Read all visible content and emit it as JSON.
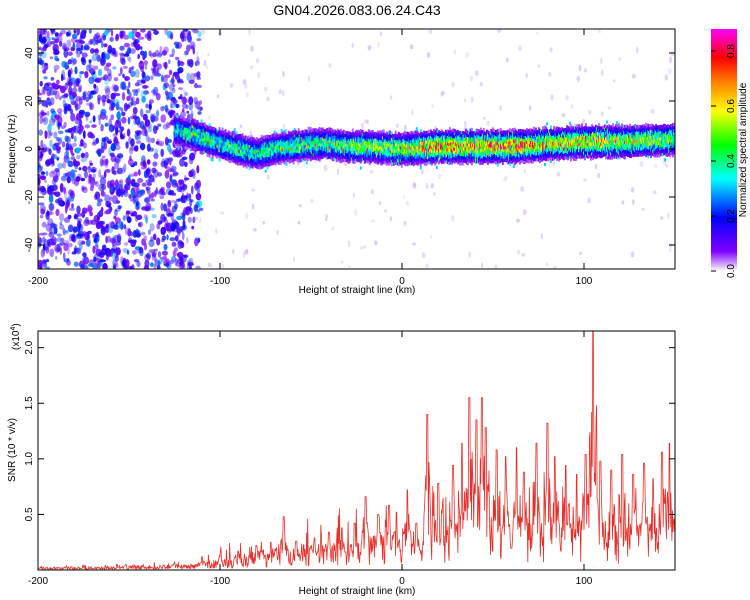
{
  "page_title": "GN04.2026.083.06.24.C43",
  "chart_data": [
    {
      "type": "heatmap",
      "xlabel": "Height of straight line (km)",
      "ylabel": "Frequency (Hz)",
      "xlim": [
        -200,
        150
      ],
      "ylim": [
        -50,
        50
      ],
      "xticks": [
        -200,
        -100,
        0,
        100
      ],
      "xtick_labels": [
        "-200",
        "-100",
        "0",
        "100"
      ],
      "yticks": [
        -40,
        -20,
        0,
        20,
        40
      ],
      "ytick_labels": [
        "-40",
        "-20",
        "0",
        "20",
        "40"
      ],
      "grid": false,
      "colorbar": {
        "label": "Normalized spectral amplitude",
        "range": [
          0.0,
          0.88
        ],
        "ticks": [
          0.0,
          0.2,
          0.4,
          0.6,
          0.8
        ],
        "tick_labels": [
          "0.0",
          "0.2",
          "0.4",
          "0.6",
          "0.8"
        ],
        "colors": [
          "#ffffff",
          "#8000ff",
          "#0000ff",
          "#00ffff",
          "#00ff00",
          "#ffff00",
          "#ff8000",
          "#ff0000",
          "#ff00ff"
        ]
      },
      "band": {
        "x": [
          -125,
          -115,
          -100,
          -90,
          -80,
          -70,
          -60,
          -50,
          -40,
          -30,
          -20,
          0,
          20,
          40,
          60,
          80,
          100,
          120,
          150
        ],
        "center_hz": [
          8,
          6,
          2,
          0,
          -2,
          0,
          1,
          2,
          2,
          1,
          1,
          0,
          1,
          1,
          1,
          2,
          3,
          3,
          4
        ],
        "peak_amplitude": [
          0.35,
          0.45,
          0.4,
          0.45,
          0.4,
          0.45,
          0.45,
          0.45,
          0.45,
          0.5,
          0.5,
          0.55,
          0.75,
          0.7,
          0.75,
          0.6,
          0.65,
          0.6,
          0.5
        ]
      },
      "noise_region": {
        "x": [
          -200,
          -120
        ],
        "amplitude": [
          0.1,
          0.25
        ]
      }
    },
    {
      "type": "line",
      "xlabel": "Height of straight line (km)",
      "ylabel": "SNR (10 * v/v)",
      "y_multiplier_label": "(x10",
      "y_multiplier_exponent": "4",
      "y_multiplier_close": ")",
      "xlim": [
        -200,
        150
      ],
      "ylim": [
        0,
        2.15
      ],
      "xticks": [
        -200,
        -100,
        0,
        100
      ],
      "xtick_labels": [
        "-200",
        "-100",
        "0",
        "100"
      ],
      "yticks": [
        0.5,
        1.0,
        1.5,
        2.0
      ],
      "ytick_labels": [
        "0.5",
        "1.0",
        "1.5",
        "2.0"
      ],
      "grid": false,
      "series": [
        {
          "color": "#e8302a",
          "x": [
            -200,
            -150,
            -120,
            -110,
            -100,
            -90,
            -80,
            -70,
            -60,
            -50,
            -40,
            -30,
            -20,
            -10,
            0,
            10,
            20,
            30,
            40,
            50,
            60,
            70,
            80,
            90,
            100,
            110,
            120,
            130,
            140,
            150
          ],
          "baseline": [
            0.02,
            0.03,
            0.04,
            0.06,
            0.08,
            0.12,
            0.14,
            0.16,
            0.18,
            0.2,
            0.22,
            0.24,
            0.26,
            0.28,
            0.3,
            0.32,
            0.34,
            0.36,
            0.4,
            0.36,
            0.34,
            0.34,
            0.36,
            0.34,
            0.36,
            0.36,
            0.34,
            0.34,
            0.36,
            0.38
          ],
          "peaks": [
            [
              -125,
              0.07
            ],
            [
              -110,
              0.12
            ],
            [
              -100,
              0.12
            ],
            [
              -90,
              0.17
            ],
            [
              -80,
              0.22
            ],
            [
              -72,
              0.25
            ],
            [
              -65,
              0.48
            ],
            [
              -58,
              0.26
            ],
            [
              -48,
              0.29
            ],
            [
              -40,
              0.34
            ],
            [
              -33,
              0.38
            ],
            [
              -26,
              0.42
            ],
            [
              -20,
              0.66
            ],
            [
              -13,
              0.5
            ],
            [
              -7,
              0.58
            ],
            [
              -3,
              0.52
            ],
            [
              3,
              0.72
            ],
            [
              8,
              0.42
            ],
            [
              14,
              1.4
            ],
            [
              20,
              0.78
            ],
            [
              28,
              0.94
            ],
            [
              33,
              1.14
            ],
            [
              37,
              1.55
            ],
            [
              41,
              1.35
            ],
            [
              44,
              1.55
            ],
            [
              46,
              1.28
            ],
            [
              52,
              1.08
            ],
            [
              57,
              1.02
            ],
            [
              63,
              1.1
            ],
            [
              67,
              0.88
            ],
            [
              74,
              1.14
            ],
            [
              80,
              1.32
            ],
            [
              84,
              1.02
            ],
            [
              90,
              0.94
            ],
            [
              96,
              0.86
            ],
            [
              101,
              1.04
            ],
            [
              105,
              2.15
            ],
            [
              109,
              0.98
            ],
            [
              115,
              0.9
            ],
            [
              121,
              1.04
            ],
            [
              127,
              0.86
            ],
            [
              133,
              0.96
            ],
            [
              138,
              0.82
            ],
            [
              143,
              1.06
            ],
            [
              147,
              1.14
            ]
          ]
        }
      ]
    }
  ]
}
